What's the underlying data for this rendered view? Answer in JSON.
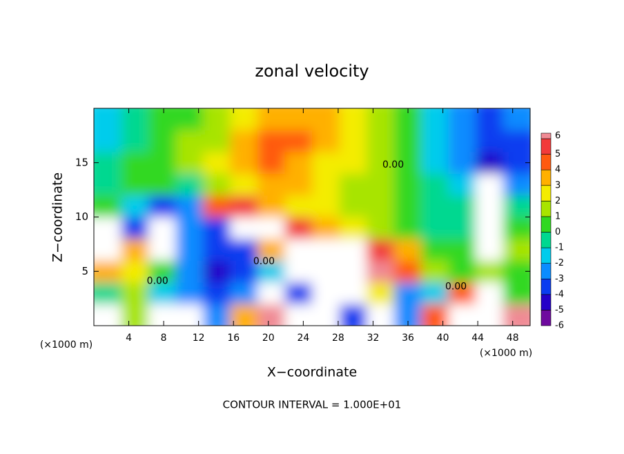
{
  "chart_data": {
    "type": "heatmap",
    "title": "zonal velocity",
    "xlabel": "X−coordinate",
    "ylabel": "Z−coordinate",
    "x_unit_label": "(×1000 m)",
    "footer": "CONTOUR INTERVAL = 1.000E+01",
    "xlim": [
      0,
      50
    ],
    "ylim": [
      0,
      20
    ],
    "xticks": [
      4,
      8,
      12,
      16,
      20,
      24,
      28,
      32,
      36,
      40,
      44,
      48
    ],
    "yticks": [
      5,
      10,
      15
    ],
    "x": [
      1.5625,
      4.6875,
      7.8125,
      10.9375,
      14.0625,
      17.1875,
      20.3125,
      23.4375,
      26.5625,
      29.6875,
      32.8125,
      35.9375,
      39.0625,
      42.1875,
      45.3125,
      48.4375
    ],
    "y": [
      1,
      3,
      5,
      7,
      9,
      11,
      13,
      15,
      17,
      19
    ],
    "z": [
      [
        7,
        1,
        7,
        7,
        -3,
        3,
        6,
        7,
        7,
        -4,
        7,
        -3,
        4,
        7,
        7,
        6
      ],
      [
        -1,
        1,
        -2,
        -3,
        -4,
        -3,
        7,
        -4,
        7,
        7,
        2,
        -3,
        -2,
        4,
        7,
        0
      ],
      [
        3,
        2,
        0,
        -3,
        -5,
        -4,
        -2,
        7,
        7,
        7,
        6,
        4,
        1,
        0,
        1,
        0
      ],
      [
        7,
        3,
        7,
        -3,
        -4,
        -4,
        3,
        7,
        7,
        7,
        5,
        3,
        0,
        0,
        7,
        1
      ],
      [
        7,
        -4,
        7,
        -3,
        -4,
        7,
        7,
        5,
        3,
        2,
        1,
        0,
        -0.5,
        -0.5,
        7,
        0
      ],
      [
        0,
        -2,
        -4,
        -3,
        4,
        5,
        3,
        2.5,
        2,
        1.5,
        1,
        0.5,
        -1,
        -1,
        7,
        -1
      ],
      [
        -0.5,
        0,
        0.5,
        -1,
        1,
        2,
        3,
        3,
        2,
        1.5,
        1,
        0.5,
        -1,
        -2,
        7,
        -2.5
      ],
      [
        -1,
        0,
        0.5,
        1,
        2,
        3,
        4,
        3.5,
        2.5,
        2,
        1,
        0.5,
        -1.5,
        -3,
        -5,
        -3.5
      ],
      [
        -1.5,
        -0.5,
        0.5,
        1,
        1.5,
        3.5,
        4.5,
        4,
        3,
        2,
        1,
        0.5,
        -1.5,
        -3,
        -4,
        -3.5
      ],
      [
        -2,
        -1,
        0,
        0.5,
        1,
        2.5,
        3.5,
        3.5,
        3,
        2,
        1,
        0.5,
        -1.5,
        -3,
        -4,
        -3
      ]
    ],
    "colorbar_ticks": [
      -6,
      -5,
      -4,
      -3,
      -2,
      -1,
      0,
      1,
      2,
      3,
      4,
      5,
      6
    ],
    "colors": [
      "#6e0a9e",
      "#2400c8",
      "#0a3cf0",
      "#0a8cff",
      "#00ccec",
      "#00d890",
      "#30d820",
      "#a8e400",
      "#f4ec00",
      "#ffb000",
      "#ff5a10",
      "#f23a3a"
    ],
    "top_color": "#f08a94",
    "annotations": [
      {
        "text": "0.00",
        "x": 19.5,
        "y": 5.9
      },
      {
        "text": "0.00",
        "x": 7.3,
        "y": 4.1
      },
      {
        "text": "0.00",
        "x": 41.5,
        "y": 3.6
      },
      {
        "text": "0.00",
        "x": 34.3,
        "y": 14.8
      }
    ]
  }
}
